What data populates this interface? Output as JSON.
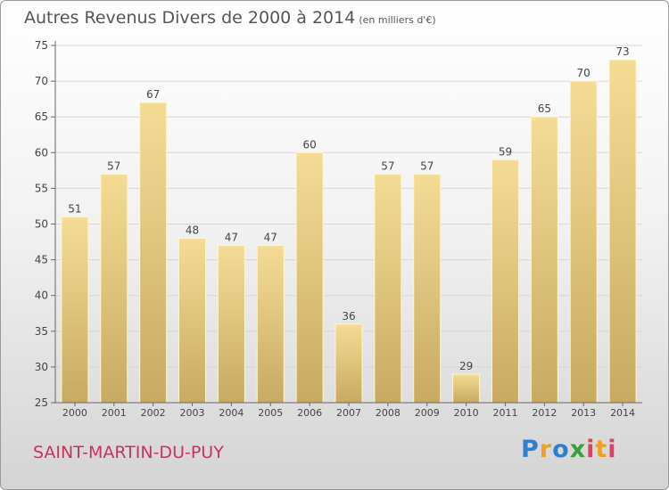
{
  "chart_data": {
    "type": "bar",
    "title": "Autres Revenus Divers de 2000 à 2014",
    "subtitle": "(en milliers d'€)",
    "categories": [
      "2000",
      "2001",
      "2002",
      "2003",
      "2004",
      "2005",
      "2006",
      "2007",
      "2008",
      "2009",
      "2010",
      "2011",
      "2012",
      "2013",
      "2014"
    ],
    "values": [
      51,
      57,
      67,
      48,
      47,
      47,
      60,
      36,
      57,
      57,
      29,
      59,
      65,
      70,
      73
    ],
    "ylim": [
      25,
      75
    ],
    "yticks": [
      25,
      30,
      35,
      40,
      45,
      50,
      55,
      60,
      65,
      70,
      75
    ],
    "grid": true,
    "bar_color": "#ecd38a"
  },
  "footer": {
    "commune": "SAINT-MARTIN-DU-PUY",
    "logo_text": "Proxiti"
  }
}
